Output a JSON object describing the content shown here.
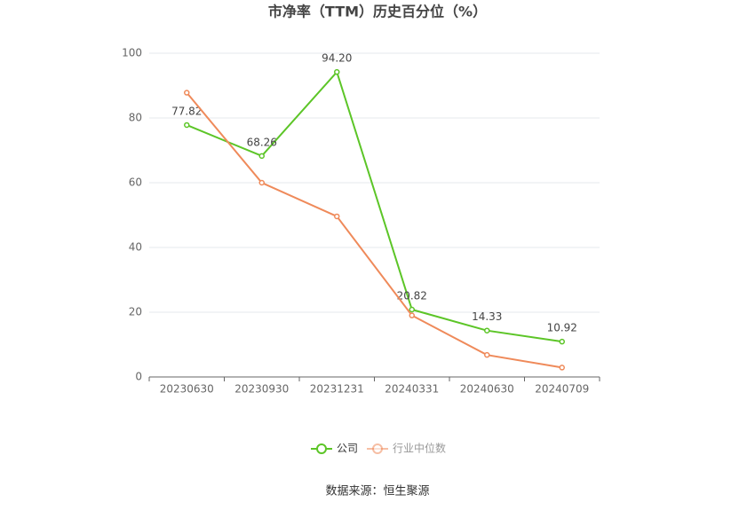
{
  "chart_data": {
    "type": "line",
    "title": "市净率（TTM）历史百分位（%）",
    "categories": [
      "20230630",
      "20230930",
      "20231231",
      "20240331",
      "20240630",
      "20240709"
    ],
    "series": [
      {
        "name": "公司",
        "color": "#5cc527",
        "values": [
          77.82,
          68.26,
          94.2,
          20.82,
          14.33,
          10.92
        ],
        "value_labels": [
          "77.82",
          "68.26",
          "94.20",
          "20.82",
          "14.33",
          "10.92"
        ]
      },
      {
        "name": "行业中位数",
        "color": "#ef8a5a",
        "values": [
          87.8,
          60,
          49.6,
          19,
          6.8,
          2.9
        ]
      }
    ],
    "ylim": [
      0,
      100
    ],
    "yticks": [
      0,
      20,
      40,
      60,
      80,
      100
    ],
    "grid": true,
    "legend": "bottom",
    "source": "数据来源：恒生聚源"
  }
}
